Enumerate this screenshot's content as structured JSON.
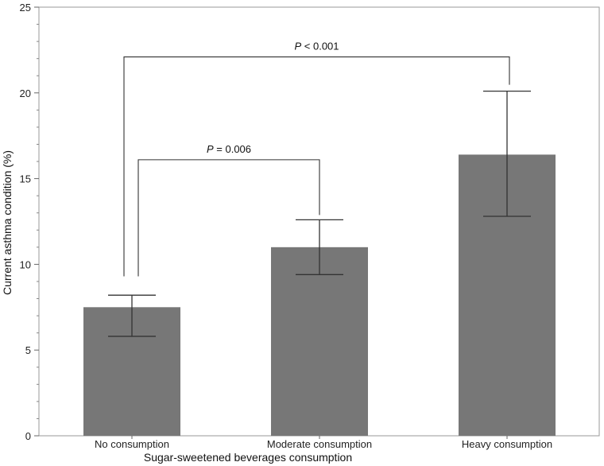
{
  "chart_data": {
    "type": "bar",
    "title": "",
    "xlabel": "Sugar-sweetened beverages consumption",
    "ylabel": "Current asthma condition (%)",
    "ylim": [
      0,
      25
    ],
    "yticks": [
      "0",
      "5",
      "10",
      "15",
      "20",
      "25"
    ],
    "categories": [
      "No consumption",
      "Moderate consumption",
      "Heavy consumption"
    ],
    "values": [
      7.5,
      11.0,
      16.4
    ],
    "error_low": [
      5.8,
      9.4,
      12.8
    ],
    "error_high": [
      8.2,
      12.6,
      20.1
    ],
    "grid": false,
    "legend": "none",
    "bar_color": "#777777",
    "annotations": [
      {
        "italic": "P",
        "rest": " < 0.001",
        "from": 0,
        "to": 2,
        "bracket_y": 22.1
      },
      {
        "italic": "P",
        "rest": " = 0.006",
        "from": 0,
        "to": 1,
        "bracket_y": 16.1
      }
    ]
  }
}
